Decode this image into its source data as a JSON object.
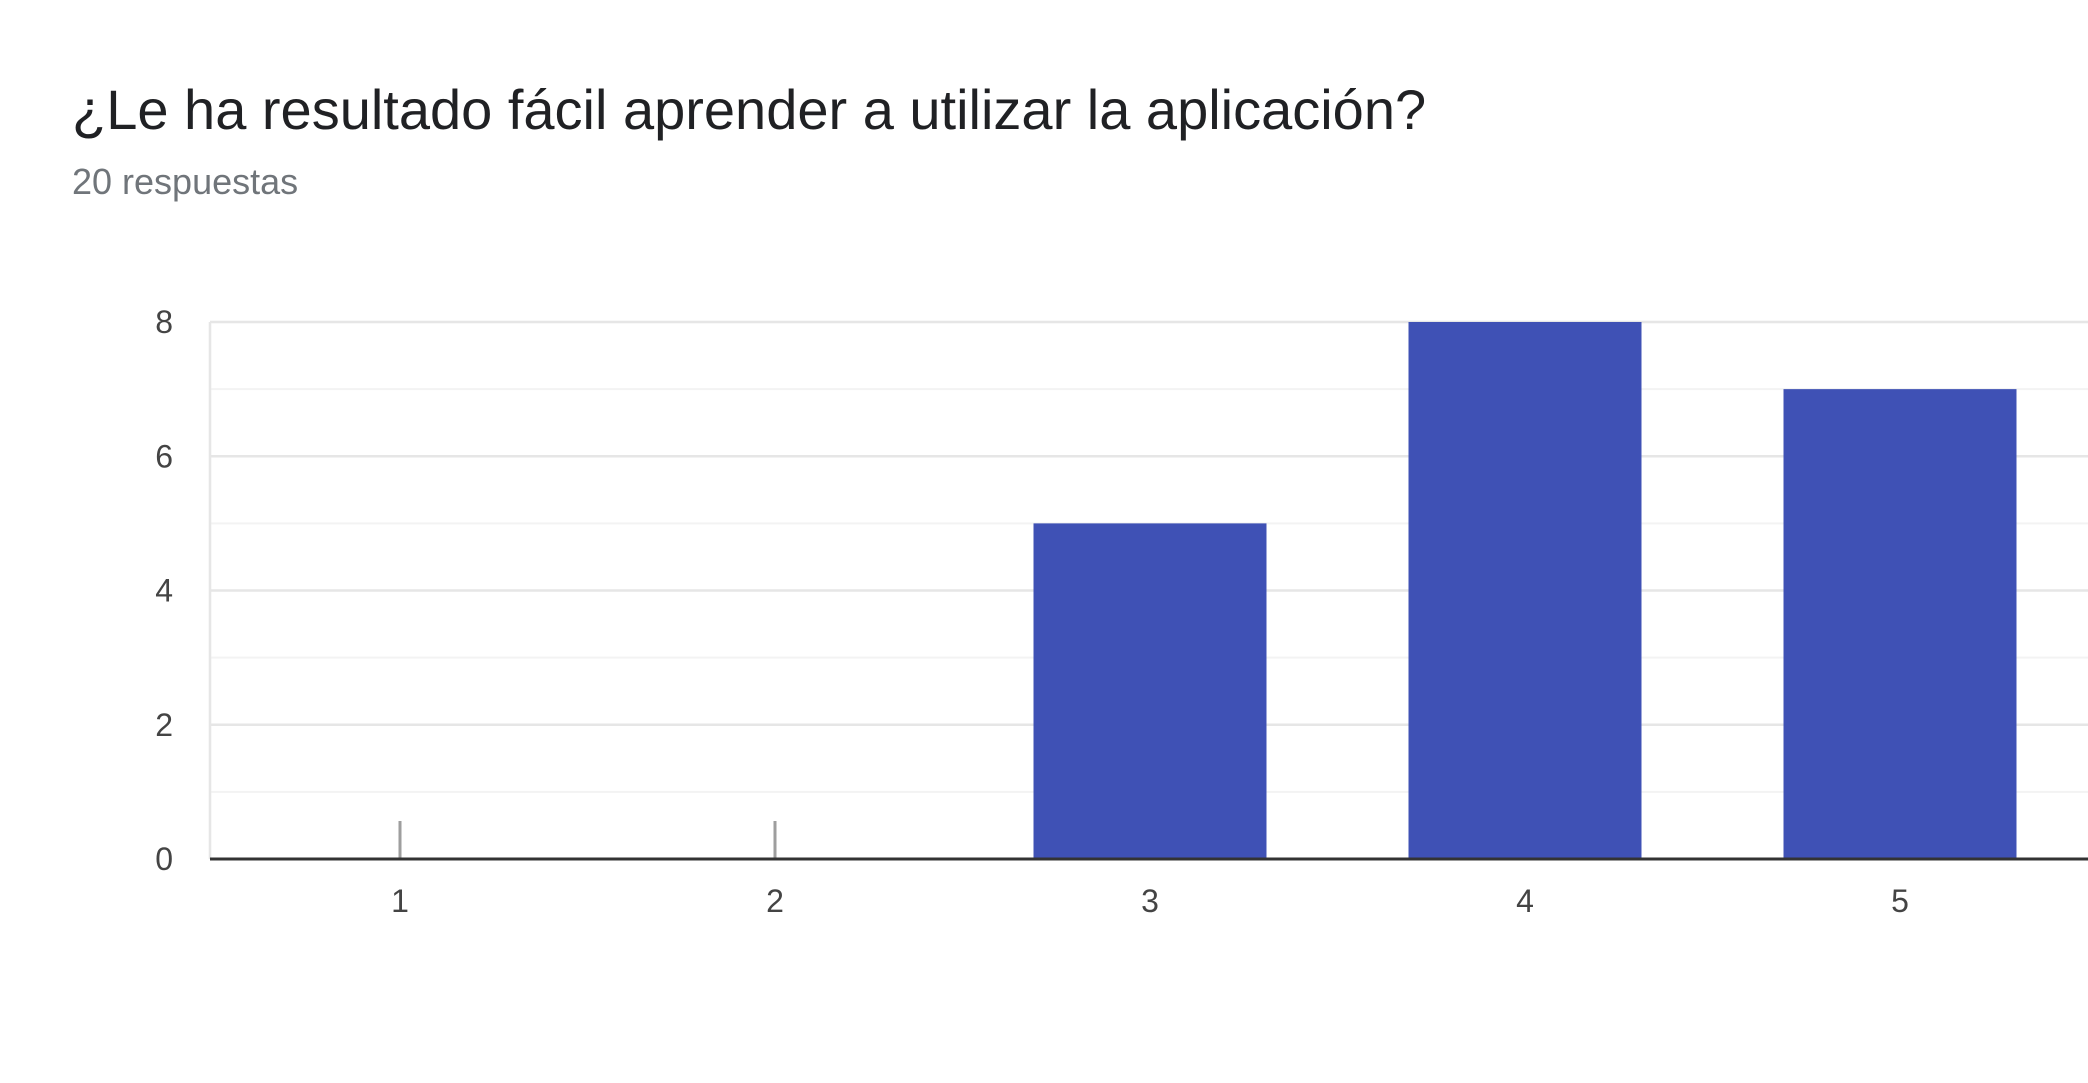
{
  "title": "¿Le ha resultado fácil aprender a utilizar la aplicación?",
  "subtitle": "20 respuestas",
  "colors": {
    "bar": "#3f51b5",
    "grid_major": "#e6e6e6",
    "grid_minor": "#f3f3f3",
    "axis": "#333333",
    "zero_tick": "#9e9e9e"
  },
  "chart_data": {
    "type": "bar",
    "categories": [
      "1",
      "2",
      "3",
      "4",
      "5"
    ],
    "values": [
      0,
      0,
      5,
      8,
      7
    ],
    "ylim": [
      0,
      8
    ],
    "yticks": [
      0,
      2,
      4,
      6,
      8
    ],
    "grid": true,
    "legend": "none"
  }
}
